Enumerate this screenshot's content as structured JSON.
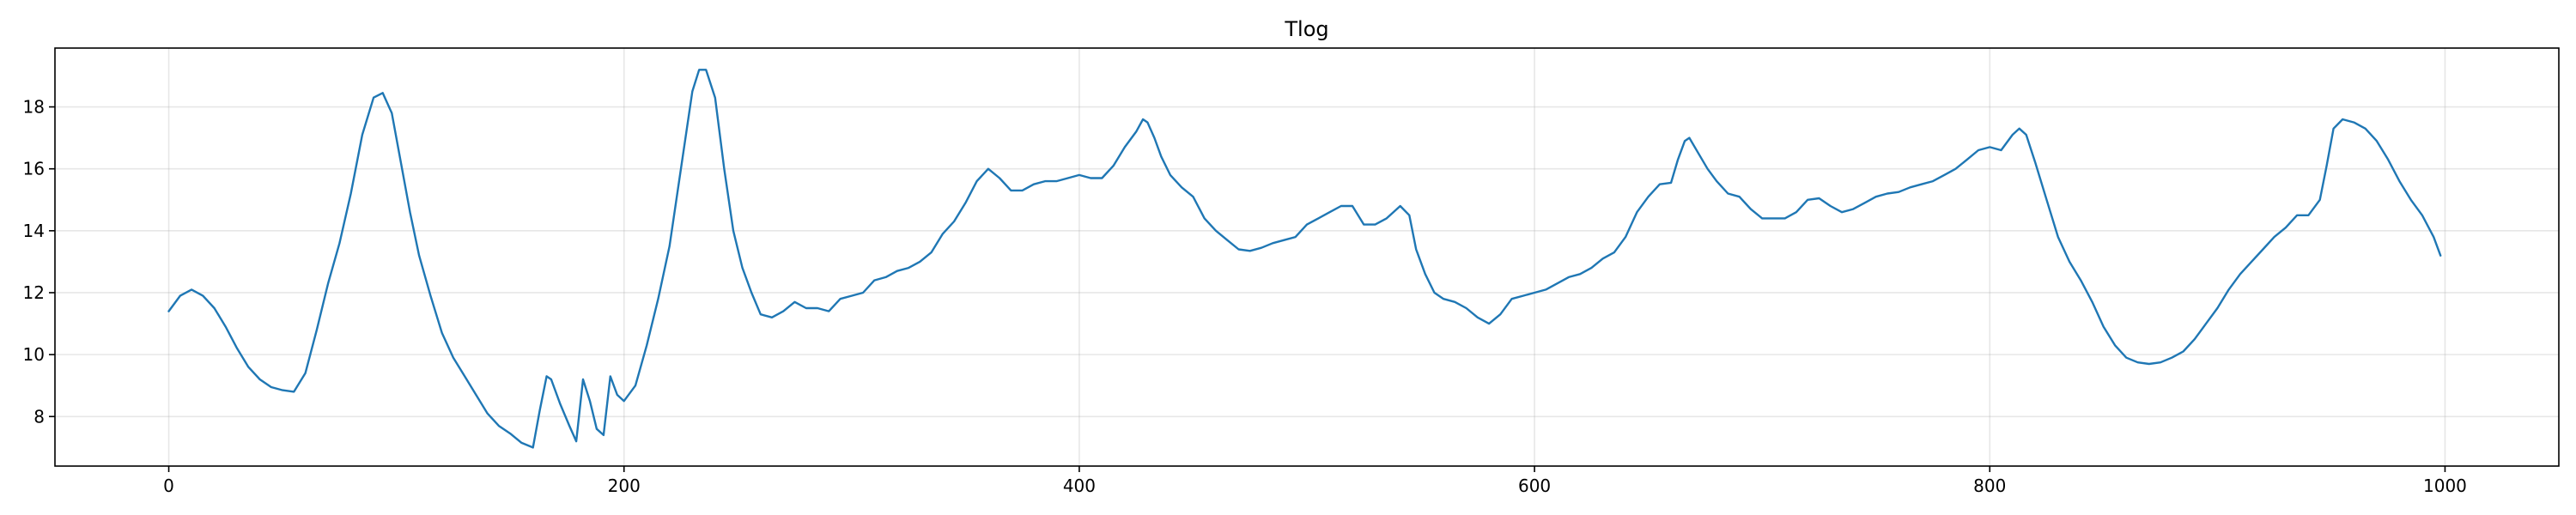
{
  "chart_data": {
    "type": "line",
    "title": "Tlog",
    "xlabel": "",
    "ylabel": "",
    "xlim": [
      -50,
      1050
    ],
    "ylim": [
      6.4,
      19.9
    ],
    "x_ticks": [
      0,
      200,
      400,
      600,
      800,
      1000
    ],
    "y_ticks": [
      8,
      10,
      12,
      14,
      16,
      18
    ],
    "x_tick_labels": [
      "0",
      "200",
      "400",
      "600",
      "800",
      "1000"
    ],
    "y_tick_labels": [
      "8",
      "10",
      "12",
      "14",
      "16",
      "18"
    ],
    "grid": true,
    "legend": "none",
    "colors": {
      "series": "#1f77b4",
      "grid": "#b0b0b0",
      "axes": "#000000"
    },
    "series": [
      {
        "x": [
          0,
          5,
          10,
          15,
          20,
          25,
          30,
          35,
          40,
          45,
          50,
          55,
          60,
          65,
          70,
          75,
          80,
          85,
          90,
          94,
          98,
          102,
          106,
          110,
          115,
          120,
          125,
          130,
          135,
          140,
          145,
          150,
          155,
          160,
          163,
          166,
          168,
          172,
          176,
          179,
          182,
          185,
          188,
          191,
          194,
          197,
          200,
          205,
          210,
          215,
          220,
          225,
          230,
          233,
          236,
          240,
          244,
          248,
          252,
          256,
          260,
          265,
          270,
          275,
          280,
          285,
          290,
          295,
          300,
          305,
          310,
          315,
          320,
          325,
          330,
          335,
          340,
          345,
          350,
          355,
          360,
          365,
          370,
          375,
          380,
          385,
          390,
          395,
          400,
          405,
          410,
          415,
          420,
          425,
          428,
          430,
          433,
          436,
          440,
          445,
          450,
          455,
          460,
          465,
          470,
          475,
          480,
          485,
          490,
          495,
          500,
          505,
          510,
          515,
          520,
          525,
          530,
          535,
          538,
          541,
          545,
          548,
          552,
          556,
          560,
          565,
          570,
          575,
          580,
          585,
          590,
          595,
          600,
          605,
          610,
          615,
          620,
          625,
          630,
          635,
          640,
          645,
          650,
          655,
          660,
          663,
          666,
          668,
          672,
          676,
          680,
          685,
          690,
          695,
          700,
          705,
          710,
          715,
          720,
          725,
          730,
          735,
          740,
          745,
          750,
          755,
          760,
          765,
          770,
          775,
          780,
          785,
          790,
          795,
          800,
          805,
          810,
          813,
          816,
          820,
          825,
          830,
          835,
          840,
          845,
          850,
          855,
          860,
          865,
          870,
          875,
          880,
          885,
          890,
          895,
          900,
          905,
          910,
          915,
          920,
          925,
          930,
          935,
          940,
          945,
          948,
          951,
          955,
          960,
          965,
          970,
          975,
          980,
          985,
          990,
          995,
          998
        ],
        "y": [
          11.4,
          11.9,
          12.1,
          11.9,
          11.5,
          10.9,
          10.2,
          9.6,
          9.2,
          8.95,
          8.85,
          8.8,
          9.4,
          10.8,
          12.3,
          13.6,
          15.2,
          17.1,
          18.3,
          18.45,
          17.8,
          16.2,
          14.6,
          13.2,
          11.9,
          10.7,
          9.9,
          9.3,
          8.7,
          8.1,
          7.7,
          7.45,
          7.15,
          7.0,
          8.2,
          9.3,
          9.2,
          8.4,
          7.7,
          7.2,
          9.2,
          8.5,
          7.6,
          7.4,
          9.3,
          8.7,
          8.5,
          9.0,
          10.3,
          11.8,
          13.5,
          16.0,
          18.5,
          19.2,
          19.2,
          18.3,
          16.0,
          14.0,
          12.8,
          12.0,
          11.3,
          11.2,
          11.4,
          11.7,
          11.5,
          11.5,
          11.4,
          11.8,
          11.9,
          12.0,
          12.4,
          12.5,
          12.7,
          12.8,
          13.0,
          13.3,
          13.9,
          14.3,
          14.9,
          15.6,
          16.0,
          15.7,
          15.3,
          15.3,
          15.5,
          15.6,
          15.6,
          15.7,
          15.8,
          15.7,
          15.7,
          16.1,
          16.7,
          17.2,
          17.6,
          17.5,
          17.0,
          16.4,
          15.8,
          15.4,
          15.1,
          14.4,
          14.0,
          13.7,
          13.4,
          13.35,
          13.45,
          13.6,
          13.7,
          13.8,
          14.2,
          14.4,
          14.6,
          14.8,
          14.8,
          14.2,
          14.2,
          14.4,
          14.6,
          14.8,
          14.5,
          13.4,
          12.6,
          12.0,
          11.8,
          11.7,
          11.5,
          11.2,
          11.0,
          11.3,
          11.8,
          11.9,
          12.0,
          12.1,
          12.3,
          12.5,
          12.6,
          12.8,
          13.1,
          13.3,
          13.8,
          14.6,
          15.1,
          15.5,
          15.55,
          16.3,
          16.9,
          17.0,
          16.5,
          16.0,
          15.6,
          15.2,
          15.1,
          14.7,
          14.4,
          14.4,
          14.4,
          14.6,
          15.0,
          15.05,
          14.8,
          14.6,
          14.7,
          14.9,
          15.1,
          15.2,
          15.25,
          15.4,
          15.5,
          15.6,
          15.8,
          16.0,
          16.3,
          16.6,
          16.7,
          16.6,
          17.1,
          17.3,
          17.1,
          16.2,
          15.0,
          13.8,
          13.0,
          12.4,
          11.7,
          10.9,
          10.3,
          9.9,
          9.75,
          9.7,
          9.75,
          9.9,
          10.1,
          10.5,
          11.0,
          11.5,
          12.1,
          12.6,
          13.0,
          13.4,
          13.8,
          14.1,
          14.5,
          14.5,
          15.0,
          16.1,
          17.3,
          17.6,
          17.5,
          17.3,
          16.9,
          16.3,
          15.6,
          15.0,
          14.5,
          13.8,
          13.2
        ]
      }
    ]
  }
}
